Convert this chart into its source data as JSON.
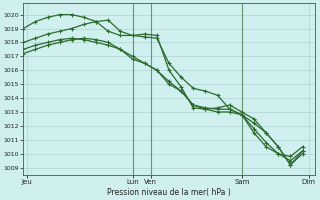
{
  "background_color": "#cff0ee",
  "line_color": "#2d6a2d",
  "xlabel": "Pression niveau de la mer( hPa )",
  "ylim": [
    1008.5,
    1020.8
  ],
  "yticks": [
    1009,
    1010,
    1011,
    1012,
    1013,
    1014,
    1015,
    1016,
    1017,
    1018,
    1019,
    1020
  ],
  "xlim": [
    0,
    24
  ],
  "xtick_positions": [
    0.3,
    9,
    10.5,
    18,
    23.5
  ],
  "xtick_labels": [
    "Jeu",
    "Lun",
    "Ven",
    "Sam",
    "Dim"
  ],
  "vline_positions": [
    9,
    10.5,
    18
  ],
  "series1_x": [
    0,
    1,
    2,
    3,
    4,
    5,
    6,
    7,
    8,
    9,
    10,
    11,
    12,
    13,
    14,
    15,
    16,
    17,
    18,
    19,
    20,
    21,
    22,
    23
  ],
  "series1_y": [
    1018.0,
    1018.3,
    1018.6,
    1018.8,
    1019.0,
    1019.3,
    1019.5,
    1019.6,
    1018.8,
    1018.5,
    1018.4,
    1018.3,
    1016.5,
    1015.5,
    1014.7,
    1014.5,
    1014.2,
    1013.2,
    1012.8,
    1012.2,
    1011.5,
    1010.5,
    1009.2,
    1010.2
  ],
  "series2_x": [
    0,
    1,
    2,
    3,
    4,
    5,
    6,
    7,
    8,
    9,
    10,
    11,
    12,
    13,
    14,
    15,
    16,
    17,
    18,
    19,
    20,
    21,
    22,
    23
  ],
  "series2_y": [
    1019.0,
    1019.5,
    1019.8,
    1020.0,
    1020.0,
    1019.8,
    1019.5,
    1018.8,
    1018.5,
    1018.5,
    1018.6,
    1018.5,
    1016.0,
    1014.8,
    1013.3,
    1013.2,
    1013.3,
    1013.5,
    1013.0,
    1012.5,
    1011.5,
    1010.5,
    1009.2,
    1010.0
  ],
  "series3_x": [
    0,
    1,
    2,
    3,
    4,
    5,
    6,
    7,
    8,
    9,
    10,
    11,
    12,
    13,
    14,
    15,
    16,
    17,
    18,
    19,
    20,
    21,
    22,
    23
  ],
  "series3_y": [
    1017.2,
    1017.5,
    1017.8,
    1018.0,
    1018.2,
    1018.3,
    1018.2,
    1018.0,
    1017.5,
    1016.8,
    1016.5,
    1016.0,
    1015.0,
    1014.5,
    1013.5,
    1013.3,
    1013.2,
    1013.2,
    1012.8,
    1011.8,
    1010.8,
    1010.0,
    1009.5,
    1010.2
  ],
  "series4_x": [
    0,
    1,
    2,
    3,
    4,
    5,
    6,
    7,
    8,
    9,
    10,
    11,
    12,
    13,
    14,
    15,
    16,
    17,
    18,
    19,
    20,
    21,
    22,
    23
  ],
  "series4_y": [
    1017.5,
    1017.8,
    1018.0,
    1018.2,
    1018.3,
    1018.2,
    1018.0,
    1017.8,
    1017.5,
    1017.0,
    1016.5,
    1016.0,
    1015.2,
    1014.5,
    1013.5,
    1013.2,
    1013.0,
    1013.0,
    1012.8,
    1011.5,
    1010.5,
    1010.0,
    1009.8,
    1010.5
  ]
}
